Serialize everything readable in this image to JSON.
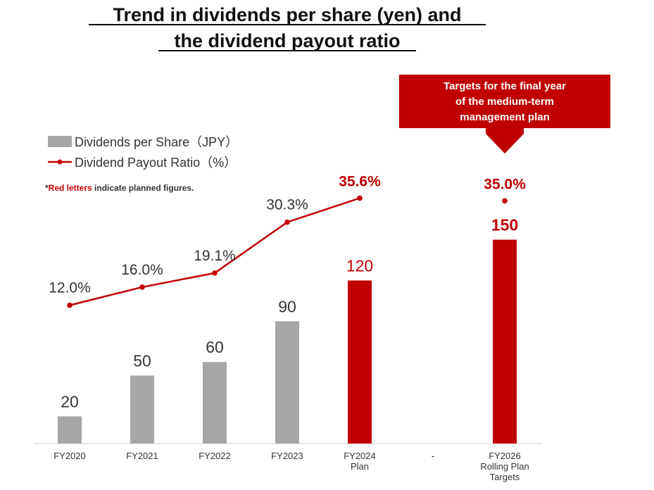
{
  "title_lines": [
    "Trend in dividends per share (yen) and",
    "the dividend payout ratio"
  ],
  "legend": {
    "dividends_label": "Dividends per Share（JPY）",
    "ratio_label": "Dividend Payout Ratio（%）"
  },
  "note": {
    "prefix": "*",
    "highlight": "Red letters",
    "rest": " indicate planned figures."
  },
  "callout": {
    "lines": [
      "Targets for the final year",
      "of the medium-term",
      "management plan"
    ]
  },
  "colors": {
    "actual_bar": "#a6a6a6",
    "planned": "#c00000",
    "actual_text": "#333333",
    "line": "#c00000"
  },
  "chart_data": {
    "type": "bar",
    "categories": [
      [
        "FY2020"
      ],
      [
        "FY2021"
      ],
      [
        "FY2022"
      ],
      [
        "FY2023"
      ],
      [
        "FY2024",
        "Plan"
      ],
      [
        "-"
      ],
      [
        "FY2026",
        "Rolling Plan",
        "Targets"
      ]
    ],
    "series": [
      {
        "name": "Dividends per Share（JPY）",
        "type": "bar",
        "values": [
          20,
          50,
          60,
          90,
          120,
          null,
          150
        ],
        "labels": [
          "20",
          "50",
          "60",
          "90",
          "120",
          "",
          "150"
        ],
        "planned": [
          false,
          false,
          false,
          false,
          true,
          false,
          true
        ]
      },
      {
        "name": "Dividend Payout Ratio（%）",
        "type": "line",
        "values": [
          12.0,
          16.0,
          19.1,
          30.3,
          35.6,
          null,
          35.0
        ],
        "labels": [
          "12.0%",
          "16.0%",
          "19.1%",
          "30.3%",
          "35.6%",
          "",
          "35.0%"
        ],
        "planned": [
          false,
          false,
          false,
          false,
          true,
          false,
          true
        ]
      }
    ]
  }
}
